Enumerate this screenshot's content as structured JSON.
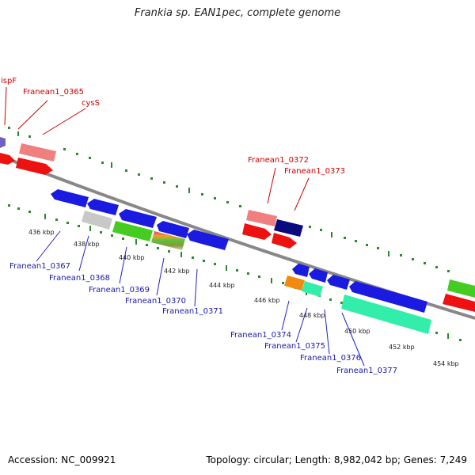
{
  "title": "Frankia sp. EAN1pec, complete genome",
  "footer": {
    "accession": "Accession: NC_009921",
    "summary": "Topology: circular; Length: 8,982,042 bp; Genes: 7,249"
  },
  "scale_labels": [
    "436 kbp",
    "438 kbp",
    "440 kbp",
    "442 kbp",
    "444 kbp",
    "446 kbp",
    "448 kbp",
    "450 kbp",
    "452 kbp",
    "454 kbp"
  ],
  "forward_genes": [
    {
      "name": "ispF",
      "color": "#d40000"
    },
    {
      "name": "Franean1_0365",
      "color": "#d40000"
    },
    {
      "name": "cysS",
      "color": "#d40000"
    },
    {
      "name": "Franean1_0372",
      "color": "#d40000"
    },
    {
      "name": "Franean1_0373",
      "color": "#d40000"
    }
  ],
  "reverse_genes": [
    {
      "name": "Franean1_0367",
      "color": "#1a1acc"
    },
    {
      "name": "Franean1_0368",
      "color": "#1a1acc"
    },
    {
      "name": "Franean1_0369",
      "color": "#1a1acc"
    },
    {
      "name": "Franean1_0370",
      "color": "#1a1acc"
    },
    {
      "name": "Franean1_0371",
      "color": "#1a1acc"
    },
    {
      "name": "Franean1_0374",
      "color": "#1a1acc"
    },
    {
      "name": "Franean1_0375",
      "color": "#1a1acc"
    },
    {
      "name": "Franean1_0376",
      "color": "#1a1acc"
    },
    {
      "name": "Franean1_0377",
      "color": "#1a1acc"
    }
  ]
}
